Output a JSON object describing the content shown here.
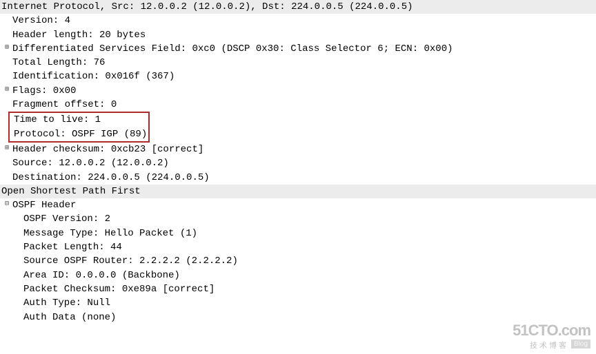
{
  "ip": {
    "header": "Internet Protocol, Src: 12.0.0.2 (12.0.0.2), Dst: 224.0.0.5 (224.0.0.5)",
    "version": "Version: 4",
    "header_length": "Header length: 20 bytes",
    "dsf": "Differentiated Services Field: 0xc0 (DSCP 0x30: Class Selector 6; ECN: 0x00)",
    "total_length": "Total Length: 76",
    "identification": "Identification: 0x016f (367)",
    "flags": "Flags: 0x00",
    "fragment_offset": "Fragment offset: 0",
    "ttl": "Time to live: 1",
    "protocol": "Protocol: OSPF IGP (89)",
    "checksum": "Header checksum: 0xcb23 [correct]",
    "source": "Source: 12.0.0.2 (12.0.0.2)",
    "destination": "Destination: 224.0.0.5 (224.0.0.5)"
  },
  "ospf": {
    "section": "Open Shortest Path First",
    "header_label": "OSPF Header",
    "version": "OSPF Version: 2",
    "msg_type": "Message Type: Hello Packet (1)",
    "pkt_length": "Packet Length: 44",
    "src_router": "Source OSPF Router: 2.2.2.2 (2.2.2.2)",
    "area_id": "Area ID: 0.0.0.0 (Backbone)",
    "pkt_checksum": "Packet Checksum: 0xe89a [correct]",
    "auth_type": "Auth Type: Null",
    "auth_data": "Auth Data (none)"
  },
  "toggles": {
    "plus": "⊞",
    "minus": "⊟"
  },
  "watermark": {
    "main": "51CTO.com",
    "sub": "技术博客",
    "blog": "Blog"
  },
  "style": {
    "highlight_border": "#b02a2a",
    "section_bg": "#ececec",
    "font": "Courier New"
  }
}
